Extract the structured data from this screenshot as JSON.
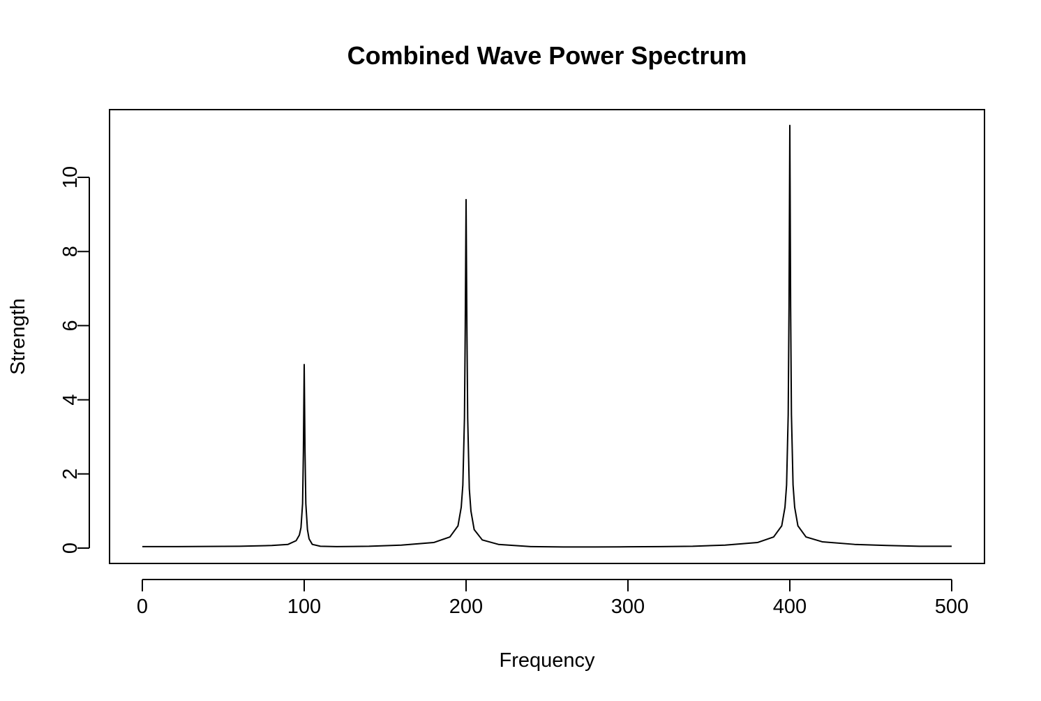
{
  "chart_data": {
    "type": "line",
    "title": "Combined Wave Power Spectrum",
    "xlabel": "Frequency",
    "ylabel": "Strength",
    "xlim": [
      0,
      500
    ],
    "ylim": [
      0,
      11.4
    ],
    "x_ticks": [
      0,
      100,
      200,
      300,
      400,
      500
    ],
    "y_ticks": [
      0,
      2,
      4,
      6,
      8,
      10
    ],
    "x_tick_labels": [
      "0",
      "100",
      "200",
      "300",
      "400",
      "500"
    ],
    "y_tick_labels": [
      "0",
      "2",
      "4",
      "6",
      "8",
      "10"
    ],
    "grid": false,
    "legend": "none",
    "line_color": "#000000",
    "series": [
      {
        "x": [
          0,
          20,
          40,
          60,
          80,
          90,
          95,
          97,
          98,
          99,
          99.5,
          100,
          100.5,
          101,
          102,
          103,
          105,
          110,
          120,
          140,
          160,
          180,
          190,
          195,
          197,
          198,
          199,
          199.5,
          200,
          200.5,
          201,
          202,
          203,
          205,
          210,
          220,
          240,
          260,
          280,
          300,
          320,
          340,
          360,
          380,
          390,
          395,
          397,
          398,
          399,
          399.5,
          400,
          400.5,
          401,
          402,
          403,
          405,
          410,
          420,
          440,
          460,
          480,
          500
        ],
        "y": [
          0.04,
          0.04,
          0.045,
          0.05,
          0.07,
          0.1,
          0.2,
          0.35,
          0.55,
          1.2,
          2.6,
          4.95,
          2.6,
          1.2,
          0.5,
          0.25,
          0.1,
          0.05,
          0.04,
          0.05,
          0.08,
          0.15,
          0.3,
          0.6,
          1.1,
          1.7,
          3.5,
          6.0,
          9.4,
          6.0,
          3.5,
          1.6,
          1.0,
          0.5,
          0.22,
          0.1,
          0.04,
          0.03,
          0.03,
          0.035,
          0.04,
          0.05,
          0.08,
          0.15,
          0.3,
          0.6,
          1.1,
          1.7,
          3.6,
          6.5,
          11.4,
          6.5,
          3.6,
          1.7,
          1.1,
          0.6,
          0.3,
          0.17,
          0.1,
          0.07,
          0.05,
          0.05
        ]
      }
    ]
  }
}
